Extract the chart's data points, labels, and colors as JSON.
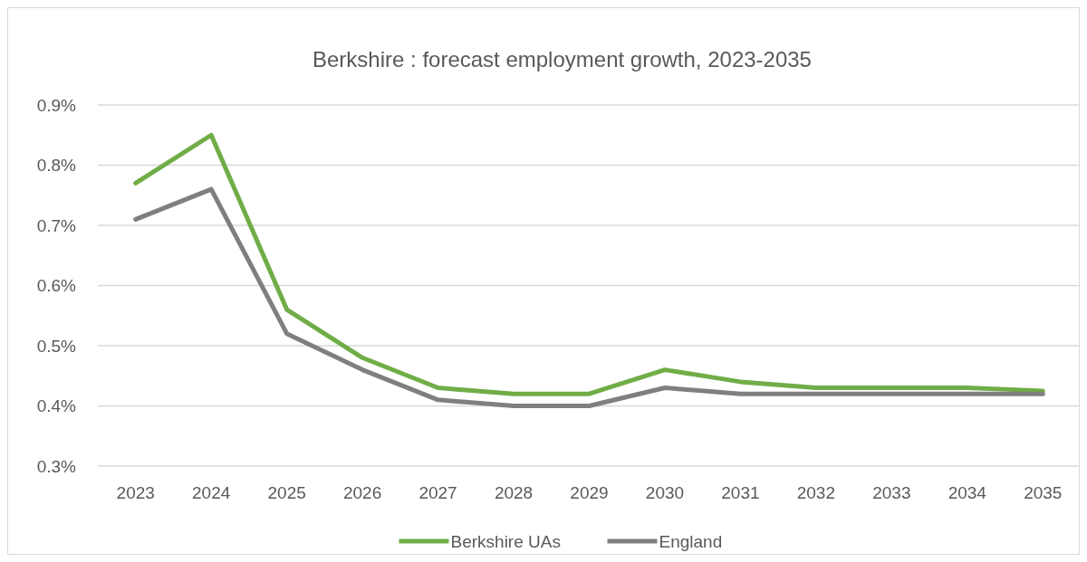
{
  "chart_data": {
    "type": "line",
    "title": "Berkshire : forecast employment growth, 2023-2035",
    "categories": [
      "2023",
      "2024",
      "2025",
      "2026",
      "2027",
      "2028",
      "2029",
      "2030",
      "2031",
      "2032",
      "2033",
      "2034",
      "2035"
    ],
    "series": [
      {
        "name": "Berkshire UAs",
        "color": "#70ad47",
        "values": [
          0.77,
          0.85,
          0.56,
          0.48,
          0.43,
          0.42,
          0.42,
          0.46,
          0.44,
          0.43,
          0.43,
          0.43,
          0.425
        ]
      },
      {
        "name": "England",
        "color": "#7f7f7f",
        "values": [
          0.71,
          0.76,
          0.52,
          0.46,
          0.41,
          0.4,
          0.4,
          0.43,
          0.42,
          0.42,
          0.42,
          0.42,
          0.42
        ]
      }
    ],
    "ylim": [
      0.3,
      0.9
    ],
    "yticks": [
      {
        "value": 0.3,
        "label": "0.3%"
      },
      {
        "value": 0.4,
        "label": "0.4%"
      },
      {
        "value": 0.5,
        "label": "0.5%"
      },
      {
        "value": 0.6,
        "label": "0.6%"
      },
      {
        "value": 0.7,
        "label": "0.7%"
      },
      {
        "value": 0.8,
        "label": "0.8%"
      },
      {
        "value": 0.9,
        "label": "0.9%"
      }
    ],
    "grid": "y",
    "legend": "bottom",
    "marker": "none",
    "line_style": "solid"
  }
}
